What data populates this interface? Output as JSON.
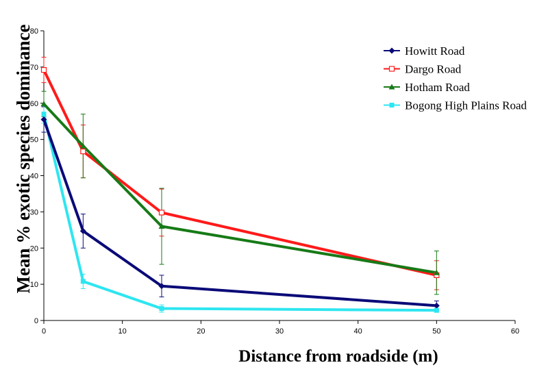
{
  "chart_data": {
    "type": "line",
    "title": "",
    "xlabel": "Distance from roadside (m)",
    "ylabel": "Mean % exotic species dominance",
    "xlim": [
      0,
      60
    ],
    "ylim": [
      0,
      80
    ],
    "xticks": [
      0,
      10,
      20,
      30,
      40,
      50,
      60
    ],
    "yticks": [
      0,
      10,
      20,
      30,
      40,
      50,
      60,
      70,
      80
    ],
    "grid": false,
    "legend_position": "top-right",
    "series": [
      {
        "name": "Howitt Road",
        "color": "#0a0a78",
        "marker": "diamond",
        "x": [
          0,
          5,
          15,
          50
        ],
        "y": [
          55.5,
          24.7,
          9.5,
          4.1
        ],
        "error": [
          3.5,
          4.7,
          3.0,
          1.3
        ]
      },
      {
        "name": "Dargo Road",
        "color": "#ff1a1a",
        "marker": "square-open",
        "x": [
          0,
          5,
          15,
          50
        ],
        "y": [
          69.2,
          46.7,
          29.8,
          12.5
        ],
        "error": [
          3.5,
          7.3,
          6.5,
          4.0
        ]
      },
      {
        "name": "Hotham Road",
        "color": "#177a17",
        "marker": "triangle",
        "x": [
          0,
          5,
          15,
          50
        ],
        "y": [
          59.8,
          48.2,
          26.0,
          13.2
        ],
        "error": [
          3.5,
          8.8,
          10.5,
          6.0
        ]
      },
      {
        "name": "Bogong High Plains Road",
        "color": "#2ee6f0",
        "marker": "square",
        "x": [
          0,
          5,
          15,
          50
        ],
        "y": [
          57.0,
          10.8,
          3.3,
          2.8
        ],
        "error": [
          2.5,
          2.0,
          1.0,
          0.5
        ]
      }
    ]
  }
}
